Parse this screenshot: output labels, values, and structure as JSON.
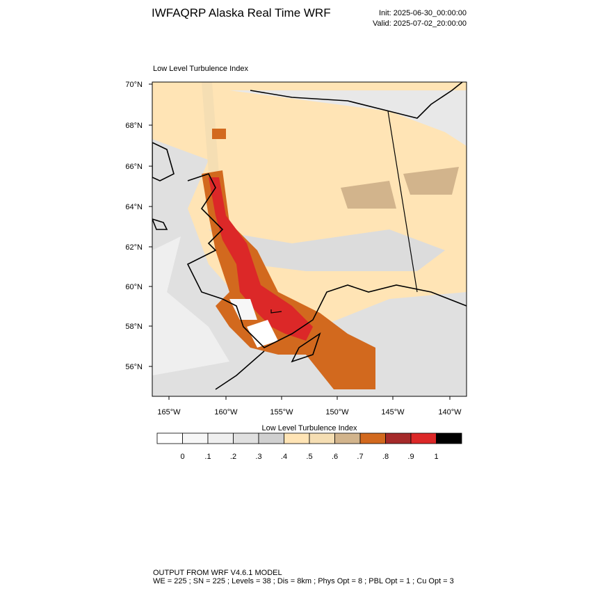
{
  "header": {
    "title": "IWFAQRP Alaska Real Time WRF",
    "init": "Init: 2025-06-30_00:00:00",
    "valid": "Valid: 2025-07-02_20:00:00"
  },
  "map": {
    "title": "Low Level Turbulence Index",
    "lat_labels": [
      "70°N",
      "68°N",
      "66°N",
      "64°N",
      "62°N",
      "60°N",
      "58°N",
      "56°N"
    ],
    "lon_labels": [
      "165°W",
      "160°W",
      "155°W",
      "150°W",
      "145°W",
      "140°W"
    ]
  },
  "colorbar": {
    "title": "Low Level Turbulence Index",
    "colors": [
      "#ffffff",
      "#f7f7f7",
      "#efefef",
      "#e0e0e0",
      "#d0d0d0",
      "#ffe4b5",
      "#f5deb3",
      "#d2b48c",
      "#d2691e",
      "#a52a2a",
      "#dc2828",
      "#000000"
    ],
    "labels": [
      "0",
      ".1",
      ".2",
      ".3",
      ".4",
      ".5",
      ".6",
      ".7",
      ".8",
      ".9",
      "1"
    ]
  },
  "footer": {
    "line1": "OUTPUT FROM WRF V4.6.1 MODEL",
    "line2": "WE = 225 ; SN = 225 ; Levels = 38 ; Dis = 8km ; Phys Opt = 8 ; PBL Opt = 1 ; Cu Opt = 3"
  }
}
